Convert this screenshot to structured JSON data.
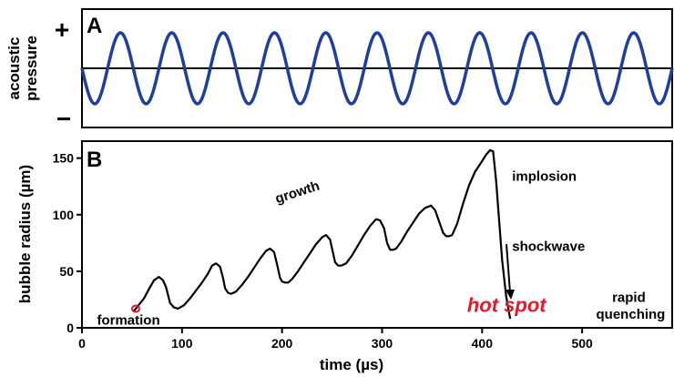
{
  "chart_data": [
    {
      "panel": "A",
      "type": "line",
      "ylabel": "acoustic\npressure",
      "y_plus_label": "+",
      "y_minus_label": "−",
      "shape": "sinusoid",
      "cycles_visible": 11.5,
      "initial_phase": "starting at baseline, descending",
      "baseline": true,
      "axis_ticks": false,
      "colors": {
        "wave": "#1f3f9e",
        "baseline": "#000000",
        "frame": "#000000"
      }
    },
    {
      "panel": "B",
      "type": "line",
      "xlabel": "time  (µs)",
      "ylabel": "bubble radius  (µm)",
      "xlim": [
        0,
        590
      ],
      "ylim": [
        0,
        165
      ],
      "xticks": [
        0,
        100,
        200,
        300,
        400,
        500
      ],
      "yticks": [
        0,
        50,
        100,
        150
      ],
      "series": [
        {
          "x": [
            52,
            62,
            68,
            72,
            77,
            81,
            84,
            88,
            92,
            96,
            102,
            108,
            114,
            120,
            126,
            130,
            134,
            138,
            141,
            143,
            146,
            149,
            154,
            160,
            166,
            172,
            178,
            184,
            188,
            192,
            195,
            198,
            200,
            203,
            206,
            210,
            216,
            222,
            228,
            234,
            240,
            244,
            248,
            251,
            253,
            256,
            259,
            264,
            270,
            276,
            282,
            288,
            294,
            298,
            302,
            305,
            308,
            311,
            314,
            319,
            325,
            331,
            337,
            343,
            349,
            353,
            357,
            361,
            364,
            367,
            370,
            375,
            381,
            387,
            393,
            399,
            404,
            408,
            411,
            414,
            417,
            420,
            424,
            428
          ],
          "y": [
            15,
            26,
            36,
            42,
            45,
            42,
            36,
            22,
            18,
            17,
            20,
            26,
            33,
            40,
            48,
            55,
            57,
            54,
            44,
            35,
            31,
            30,
            32,
            38,
            45,
            53,
            61,
            68,
            70,
            67,
            56,
            44,
            41,
            40,
            40,
            43,
            50,
            58,
            66,
            74,
            80,
            82,
            78,
            66,
            58,
            55,
            55,
            57,
            64,
            73,
            82,
            90,
            96,
            95,
            88,
            75,
            69,
            69,
            70,
            76,
            85,
            93,
            101,
            106,
            108,
            104,
            94,
            84,
            81,
            81,
            82,
            92,
            110,
            126,
            138,
            146,
            153,
            157,
            156,
            130,
            95,
            60,
            28,
            8
          ]
        }
      ],
      "annotations": [
        {
          "text": "growth",
          "x": 195,
          "y": 110
        },
        {
          "text": "implosion",
          "x": 430,
          "y": 130
        },
        {
          "text": "shockwave",
          "x": 430,
          "y": 68
        },
        {
          "text": "hot spot",
          "x": 385,
          "y": 14
        },
        {
          "text": "rapid",
          "x": 530,
          "y": 23
        },
        {
          "text": "quenching",
          "x": 514,
          "y": 8
        },
        {
          "text": "formation",
          "x": 15,
          "y": 3
        }
      ],
      "colors": {
        "curve": "#000000",
        "hot_spot": "#e8172c",
        "formation_marker": "#e8172c"
      }
    }
  ],
  "panels": {
    "a": {
      "label": "A"
    },
    "b": {
      "label": "B"
    }
  }
}
